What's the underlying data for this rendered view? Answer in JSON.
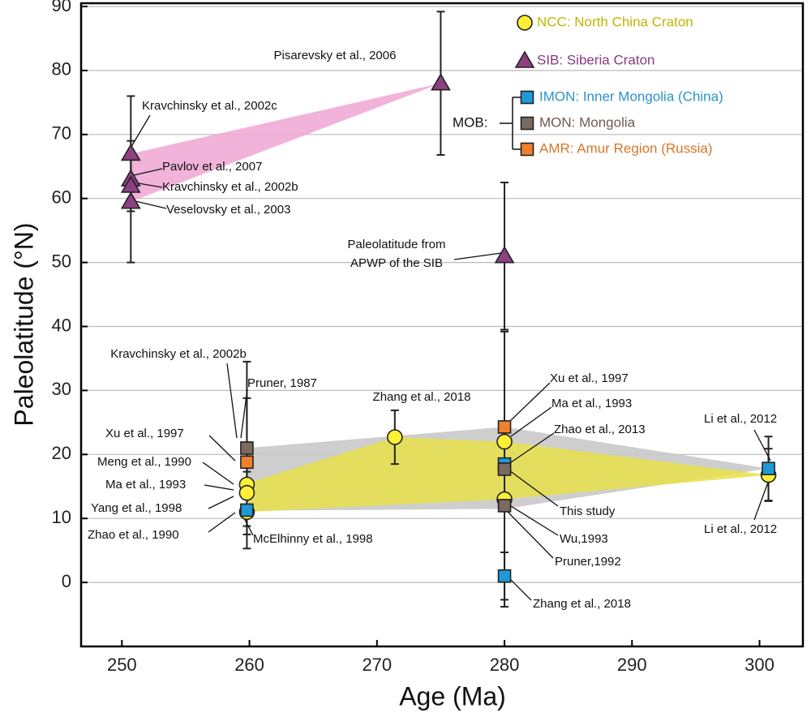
{
  "chart_data": {
    "type": "scatter",
    "xlabel": "Age (Ma)",
    "ylabel": "Paleolatitude (°N)",
    "xlim": [
      246.8,
      303.4
    ],
    "ylim": [
      -10,
      90
    ],
    "xticks": [
      250,
      260,
      270,
      280,
      290,
      300
    ],
    "yticks": [
      0,
      10,
      20,
      30,
      40,
      50,
      60,
      70,
      80,
      90
    ],
    "grid": true,
    "legend_group": "MOB:",
    "series": [
      {
        "name": "NCC: North China Craton",
        "color": "#fff034",
        "text_color": "#c2b400",
        "marker": "circle",
        "x": [
          259.8,
          259.8,
          259.8,
          271.4,
          280,
          280,
          300.7
        ],
        "y": [
          15.3,
          14,
          11,
          22.7,
          22,
          13,
          16.8
        ],
        "errors": [
          null,
          null,
          null,
          4.2,
          null,
          null,
          4.1
        ]
      },
      {
        "name": "SIB: Siberia Craton",
        "color": "#8e3f82",
        "text_color": "#8a3b7d",
        "marker": "triangle",
        "x": [
          250.7,
          250.7,
          250.7,
          250.7,
          275,
          280
        ],
        "y": [
          67,
          63,
          62,
          59.5,
          78,
          51
        ],
        "errors": [
          9,
          null,
          null,
          9.5,
          11.2,
          11.5
        ]
      },
      {
        "name": "IMON: Inner Mongolia (China)",
        "color": "#1f9ad8",
        "text_color": "#2a93c9",
        "marker": "square",
        "x": [
          259.8,
          280,
          280,
          300.7
        ],
        "y": [
          11.3,
          18.5,
          1,
          17.8
        ],
        "errors": [
          6,
          null,
          3.7,
          5
        ]
      },
      {
        "name": "MON: Mongolia",
        "color": "#7b6a60",
        "text_color": "#6f5a50",
        "marker": "square",
        "x": [
          259.8,
          280,
          280
        ],
        "y": [
          21,
          17.7,
          12
        ],
        "errors": [
          13.5,
          21.5,
          null
        ]
      },
      {
        "name": "AMR: Amur Region (Russia)",
        "color": "#f0802c",
        "text_color": "#d8762a",
        "marker": "square",
        "x": [
          259.8,
          280
        ],
        "y": [
          18.8,
          24.3
        ],
        "errors": [
          10,
          null
        ]
      }
    ],
    "envelopes": [
      {
        "color": "#f0a6d4",
        "x": [
          250.7,
          275,
          250.7
        ],
        "y": [
          67,
          78,
          59.5
        ]
      },
      {
        "color": "#c6c6c6",
        "x": [
          259.8,
          280,
          300.7,
          280,
          259.8
        ],
        "y": [
          21,
          24.3,
          17.8,
          11.5,
          11.2
        ]
      },
      {
        "color": "#e8e14a",
        "x": [
          259.8,
          271.4,
          280,
          300.7,
          280,
          259.8
        ],
        "y": [
          15.5,
          22.7,
          22,
          16.8,
          13,
          11
        ]
      }
    ],
    "annotations": [
      {
        "text": "Pisarevsky et al., 2006"
      },
      {
        "text": "Kravchinsky et al., 2002c"
      },
      {
        "text": "Pavlov et al., 2007"
      },
      {
        "text": "Kravchinsky et al., 2002b"
      },
      {
        "text": "Veselovsky et al., 2003"
      },
      {
        "text": "Paleolatitude from"
      },
      {
        "text": "APWP of the SIB"
      },
      {
        "text": "Kravchinsky et al., 2002b"
      },
      {
        "text": "Pruner, 1987"
      },
      {
        "text": "Xu et al., 1997"
      },
      {
        "text": "Meng et al., 1990"
      },
      {
        "text": "Ma et al., 1993"
      },
      {
        "text": "Yang et al., 1998"
      },
      {
        "text": "Zhao et al., 1990"
      },
      {
        "text": "McElhinny et al., 1998"
      },
      {
        "text": "Zhang et al., 2018"
      },
      {
        "text": "Xu et al., 1997"
      },
      {
        "text": "Ma et al., 1993"
      },
      {
        "text": "Zhao et al., 2013"
      },
      {
        "text": "This study"
      },
      {
        "text": "Wu,1993"
      },
      {
        "text": "Pruner,1992"
      },
      {
        "text": "Zhang et al., 2018"
      },
      {
        "text": "Li et al., 2012"
      },
      {
        "text": "Li et al., 2012"
      }
    ]
  }
}
